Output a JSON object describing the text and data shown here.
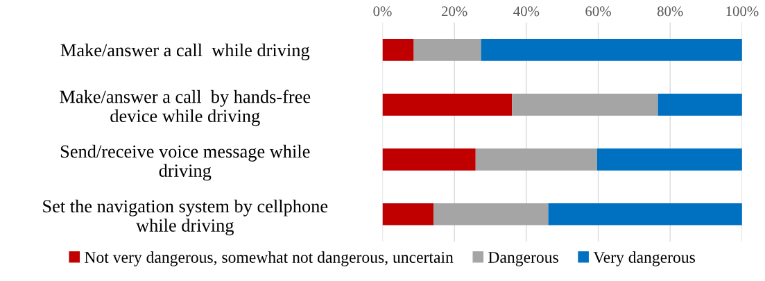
{
  "chart_data": {
    "type": "bar",
    "orientation": "horizontal",
    "stacked": true,
    "categories": [
      "Make/answer a call  while driving",
      "Make/answer a call  by hands-free\ndevice while driving",
      "Send/receive voice message while\ndriving",
      "Set the navigation system by cellphone\nwhile driving"
    ],
    "series": [
      {
        "name": "Not very dangerous, somewhat not dangerous, uncertain",
        "color": "#c00000",
        "values": [
          8.7,
          36.0,
          25.9,
          14.2
        ]
      },
      {
        "name": "Dangerous",
        "color": "#a5a5a5",
        "values": [
          18.7,
          40.6,
          33.8,
          31.9
        ]
      },
      {
        "name": "Very dangerous",
        "color": "#0070c0",
        "values": [
          72.6,
          23.4,
          40.3,
          53.9
        ]
      }
    ],
    "xlim": [
      0,
      100
    ],
    "xticks": [
      {
        "value": 0,
        "label": "0%"
      },
      {
        "value": 20,
        "label": "20%"
      },
      {
        "value": 40,
        "label": "40%"
      },
      {
        "value": 60,
        "label": "60%"
      },
      {
        "value": 80,
        "label": "80%"
      },
      {
        "value": 100,
        "label": "100%"
      }
    ],
    "grid": "x",
    "legend": "bottom"
  }
}
